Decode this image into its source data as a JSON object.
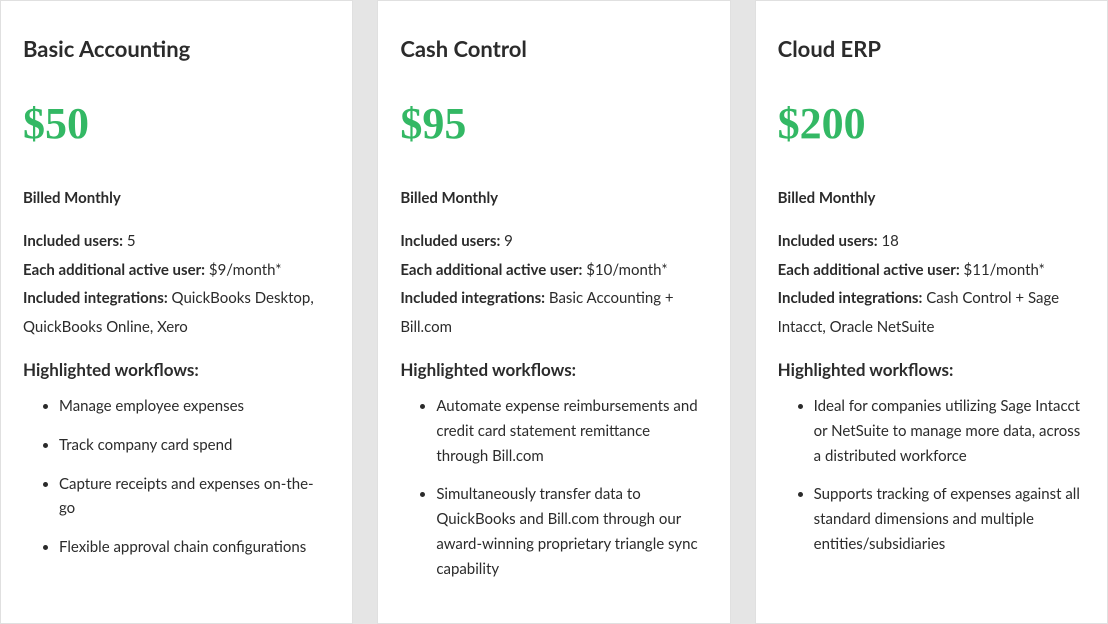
{
  "layout": {
    "card_bg": "#ffffff",
    "page_bg": "#e5e5e5",
    "border_color": "#e0e0e0",
    "price_color": "#33b864",
    "text_color": "#2b2b2b"
  },
  "plans": [
    {
      "title": "Basic Accounting",
      "price": "$50",
      "billing": "Billed Monthly",
      "included_users_label": "Included users:",
      "included_users_value": " 5",
      "addl_user_label": "Each additional active user:",
      "addl_user_value": " $9/month*",
      "integrations_label": "Included integrations:",
      "integrations_value": " QuickBooks Desktop, QuickBooks Online, Xero",
      "workflows_heading": "Highlighted workflows:",
      "workflows": [
        "Manage employee expenses",
        "Track company card spend",
        "Capture receipts and expenses on-the-go",
        "Flexible approval chain configurations"
      ]
    },
    {
      "title": "Cash Control",
      "price": "$95",
      "billing": "Billed Monthly",
      "included_users_label": "Included users:",
      "included_users_value": " 9",
      "addl_user_label": "Each additional active user:",
      "addl_user_value": " $10/month*",
      "integrations_label": "Included integrations:",
      "integrations_value": " Basic Accounting + Bill.com",
      "workflows_heading": "Highlighted workflows:",
      "workflows": [
        "Automate expense reimbursements and credit card statement remittance through Bill.com",
        "Simultaneously transfer data to QuickBooks and Bill.com through our award-winning proprietary triangle sync capability"
      ]
    },
    {
      "title": "Cloud ERP",
      "price": "$200",
      "billing": "Billed Monthly",
      "included_users_label": "Included users:",
      "included_users_value": " 18",
      "addl_user_label": "Each additional active user:",
      "addl_user_value": " $11/month*",
      "integrations_label": "Included integrations:",
      "integrations_value": " Cash Control + Sage Intacct, Oracle NetSuite",
      "workflows_heading": "Highlighted workflows:",
      "workflows": [
        "Ideal for companies utilizing Sage Intacct or NetSuite to manage more data, across a distributed workforce",
        "Supports tracking of expenses against all standard dimensions and multiple entities/subsidiaries"
      ]
    }
  ]
}
